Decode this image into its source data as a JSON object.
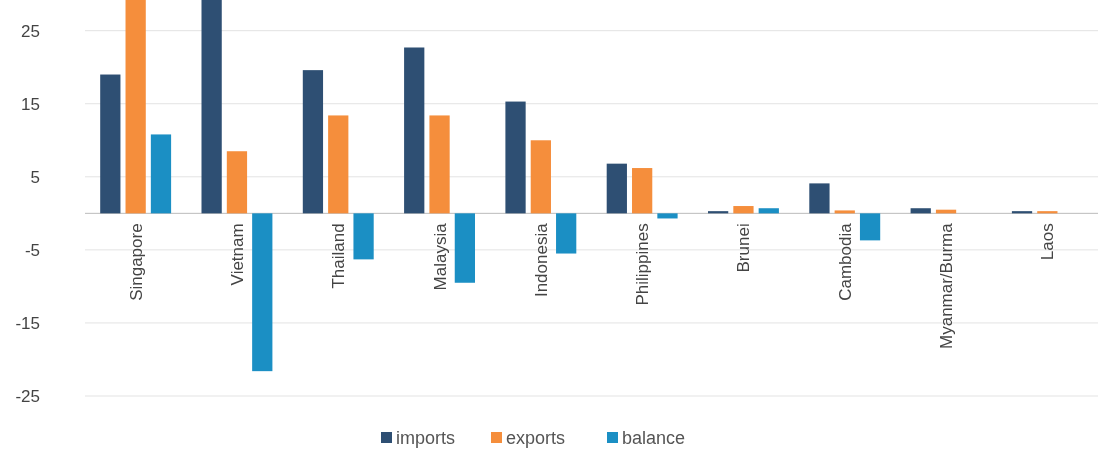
{
  "chart_data": {
    "type": "bar",
    "categories": [
      "Singapore",
      "Vietnam",
      "Thailand",
      "Malaysia",
      "Indonesia",
      "Philippines",
      "Brunei",
      "Cambodia",
      "Myanmar/Burma",
      "Laos"
    ],
    "series": [
      {
        "name": "imports",
        "color": "#2e4f73",
        "values": [
          19.0,
          29.2,
          19.6,
          22.7,
          15.3,
          6.8,
          0.3,
          4.1,
          0.7,
          0.3
        ]
      },
      {
        "name": "exports",
        "color": "#f58e3c",
        "values": [
          29.2,
          8.5,
          13.4,
          13.4,
          10.0,
          6.2,
          1.0,
          0.4,
          0.5,
          0.3
        ]
      },
      {
        "name": "balance",
        "color": "#1b8fc4",
        "values": [
          10.8,
          -21.6,
          -6.3,
          -9.5,
          -5.5,
          -0.7,
          0.7,
          -3.7,
          0,
          0
        ]
      }
    ],
    "ylim": [
      -25,
      29.2
    ],
    "yticks": [
      -25,
      -15,
      -5,
      5,
      15,
      25
    ],
    "grid": "y",
    "legend": "bottom"
  }
}
